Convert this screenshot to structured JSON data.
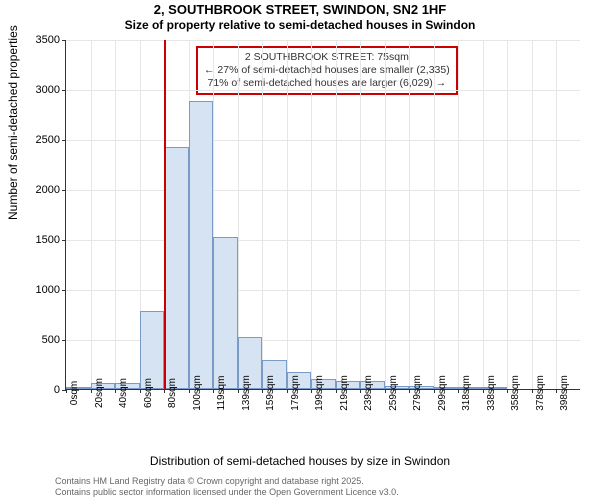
{
  "titles": {
    "main": "2, SOUTHBROOK STREET, SWINDON, SN2 1HF",
    "sub": "Size of property relative to semi-detached houses in Swindon"
  },
  "axes": {
    "ylabel": "Number of semi-detached properties",
    "xlabel": "Distribution of semi-detached houses by size in Swindon",
    "ylim_max": 3500,
    "ytick_step": 500,
    "yticks": [
      0,
      500,
      1000,
      1500,
      2000,
      2500,
      3000,
      3500
    ],
    "xticks": [
      "0sqm",
      "20sqm",
      "40sqm",
      "60sqm",
      "80sqm",
      "100sqm",
      "119sqm",
      "139sqm",
      "159sqm",
      "179sqm",
      "199sqm",
      "219sqm",
      "239sqm",
      "259sqm",
      "279sqm",
      "299sqm",
      "318sqm",
      "338sqm",
      "358sqm",
      "378sqm",
      "398sqm"
    ]
  },
  "histogram": {
    "type": "histogram",
    "bar_fill": "#d6e3f3",
    "bar_border": "#7a9ac8",
    "bar_width_rel": 1.0,
    "values": [
      5,
      60,
      60,
      780,
      2420,
      2880,
      1520,
      520,
      290,
      170,
      100,
      80,
      80,
      30,
      30,
      20,
      5,
      5,
      0,
      0,
      0
    ]
  },
  "reference_line": {
    "color": "#cc0000",
    "bin_index": 4,
    "position_rel": 0.19
  },
  "info_box": {
    "border_color": "#cc0000",
    "line1": "2 SOUTHBROOK STREET: 75sqm",
    "line2": "← 27% of semi-detached houses are smaller (2,335)",
    "line3": "71% of semi-detached houses are larger (6,029) →"
  },
  "colors": {
    "background": "#ffffff",
    "grid": "#e6e6e6",
    "axis": "#333333",
    "text": "#000000"
  },
  "footer": {
    "line1": "Contains HM Land Registry data © Crown copyright and database right 2025.",
    "line2": "Contains public sector information licensed under the Open Government Licence v3.0."
  }
}
